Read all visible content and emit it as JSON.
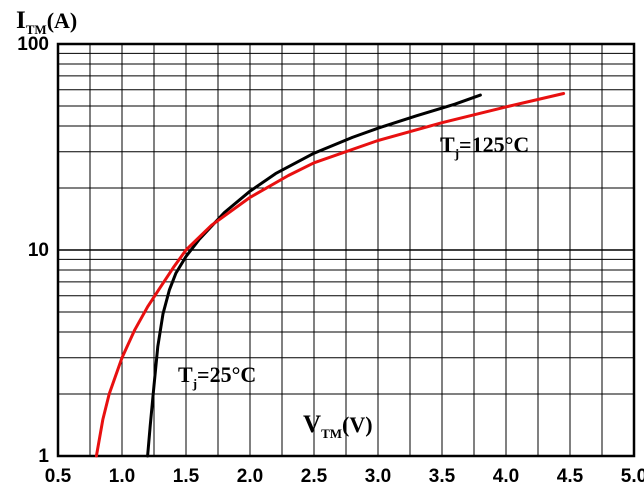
{
  "chart_data": {
    "type": "line",
    "title": "",
    "xlabel": {
      "main": "V",
      "sub": "TM",
      "unit": "(V)"
    },
    "ylabel": {
      "main": "I",
      "sub": "TM",
      "unit": "(A)"
    },
    "xscale": "linear",
    "yscale": "log",
    "xlim": [
      0.5,
      5.0
    ],
    "ylim": [
      1,
      100
    ],
    "xticks": [
      "0.5",
      "1.0",
      "1.5",
      "2.0",
      "2.5",
      "3.0",
      "3.5",
      "4.0",
      "4.5",
      "5.0"
    ],
    "yticks": [
      "1",
      "10",
      "100"
    ],
    "grid": true,
    "series": [
      {
        "color": "#000000",
        "annotation": {
          "main": "T",
          "sub": "j",
          "rest": "=25°C"
        },
        "x": [
          1.2,
          1.22,
          1.25,
          1.28,
          1.32,
          1.37,
          1.42,
          1.5,
          1.6,
          1.8,
          2.0,
          2.2,
          2.5,
          2.8,
          3.0,
          3.3,
          3.6,
          3.8
        ],
        "y": [
          1.0,
          1.4,
          2.2,
          3.4,
          4.9,
          6.4,
          7.7,
          9.3,
          11.2,
          15.2,
          19.3,
          23.5,
          29.5,
          35.2,
          39.0,
          44.8,
          51.0,
          56.5
        ]
      },
      {
        "color": "#e81010",
        "annotation": {
          "main": "T",
          "sub": "j",
          "rest": "=125°C"
        },
        "x": [
          0.8,
          0.85,
          0.9,
          1.0,
          1.1,
          1.2,
          1.3,
          1.4,
          1.5,
          1.7,
          2.0,
          2.3,
          2.5,
          3.0,
          3.5,
          4.0,
          4.45
        ],
        "y": [
          1.0,
          1.5,
          2.0,
          3.0,
          4.1,
          5.3,
          6.6,
          8.2,
          10.0,
          13.2,
          18.0,
          23.0,
          26.5,
          34.0,
          41.5,
          49.5,
          57.5
        ]
      }
    ]
  }
}
